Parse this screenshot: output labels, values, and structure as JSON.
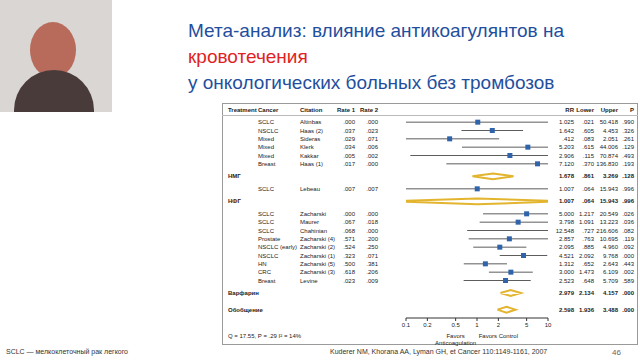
{
  "chart_data": {
    "type": "forest",
    "title": [
      {
        "text": "Мета-анализ: влияние антикоагулянтов на ",
        "color": "#1f4f9e"
      },
      {
        "text": "кровотечения",
        "color": "#e0231f"
      },
      {
        "text": "у онкологических больных без тромбозов",
        "color": "#1f4f9e"
      }
    ],
    "columns": [
      "Treatment",
      "Cancer",
      "Citation",
      "Rate 1",
      "Rate 2",
      "RR",
      "Lower",
      "Upper",
      "P"
    ],
    "color": "#2f63aa",
    "log": "x",
    "xlim": [
      0.1,
      10
    ],
    "xticks": [
      0.1,
      0.2,
      0.5,
      1,
      2,
      5,
      10
    ],
    "rows": [
      {
        "cells": [
          null,
          "SCLC",
          "Altinbas",
          ".000",
          ".000",
          "1.025",
          ".021",
          "50.418",
          ".990"
        ],
        "rr": 1.025,
        "lower": 0.021,
        "upper": 50.418
      },
      {
        "cells": [
          null,
          "NSCLC",
          "Haas (2)",
          ".037",
          ".023",
          "1.642",
          ".605",
          "4.453",
          ".326"
        ],
        "rr": 1.642,
        "lower": 0.605,
        "upper": 4.453
      },
      {
        "cells": [
          null,
          "Mixed",
          "Sideras",
          ".029",
          ".071",
          ".412",
          ".083",
          "2.051",
          ".261"
        ],
        "rr": 0.412,
        "lower": 0.083,
        "upper": 2.051
      },
      {
        "cells": [
          null,
          "Mixed",
          "Klerk",
          ".034",
          ".006",
          "5.203",
          ".615",
          "44.006",
          ".129"
        ],
        "rr": 5.203,
        "lower": 0.615,
        "upper": 44.006
      },
      {
        "cells": [
          null,
          "Mixed",
          "Kakkar",
          ".005",
          ".002",
          "2.906",
          ".115",
          "70.874",
          ".493"
        ],
        "rr": 2.906,
        "lower": 0.115,
        "upper": 70.874
      },
      {
        "cells": [
          null,
          "Breast",
          "Haas (1)",
          ".017",
          ".000",
          "7.120",
          ".370",
          "136.830",
          ".193"
        ],
        "rr": 7.12,
        "lower": 0.37,
        "upper": 136.83
      },
      {
        "type": "summary",
        "color": "#e3b52f",
        "cells": [
          "НМГ",
          null,
          null,
          null,
          null,
          "1.678",
          ".861",
          "3.269",
          ".128"
        ],
        "rr": 1.678,
        "lower": 0.861,
        "upper": 3.269
      },
      {
        "cells": [
          null,
          "SCLC",
          "Lebeau",
          ".007",
          ".007",
          "1.007",
          ".064",
          "15.943",
          ".996"
        ],
        "rr": 1.007,
        "lower": 0.064,
        "upper": 15.943
      },
      {
        "type": "summary",
        "color": "#e3b52f",
        "cells": [
          "НФГ",
          null,
          null,
          null,
          null,
          "1.007",
          ".064",
          "15.943",
          ".996"
        ],
        "rr": 1.007,
        "lower": 0.064,
        "upper": 15.943
      },
      {
        "cells": [
          null,
          "SCLC",
          "Zacharski",
          ".000",
          ".000",
          "5.000",
          "1.217",
          "20.549",
          ".026"
        ],
        "rr": 5.0,
        "lower": 1.217,
        "upper": 20.549
      },
      {
        "cells": [
          null,
          "SCLC",
          "Maurer",
          ".067",
          ".018",
          "3.798",
          "1.091",
          "13.223",
          ".036"
        ],
        "rr": 3.798,
        "lower": 1.091,
        "upper": 13.223
      },
      {
        "cells": [
          null,
          "SCLC",
          "Chahinian",
          ".068",
          ".000",
          "12.548",
          ".727",
          "216.606",
          ".082"
        ],
        "rr": 12.548,
        "lower": 0.727,
        "upper": 216.606
      },
      {
        "cells": [
          null,
          "Prostate",
          "Zacharski (4)",
          ".571",
          ".200",
          "2.857",
          ".763",
          "10.695",
          ".119"
        ],
        "rr": 2.857,
        "lower": 0.763,
        "upper": 10.695
      },
      {
        "cells": [
          null,
          "NSCLC (early)",
          "Zacharski (2)",
          ".524",
          ".250",
          "2.095",
          ".885",
          "4.960",
          ".092"
        ],
        "rr": 2.095,
        "lower": 0.885,
        "upper": 4.96
      },
      {
        "cells": [
          null,
          "NSCLC",
          "Zacharski (1)",
          ".323",
          ".071",
          "4.521",
          "2.092",
          "9.768",
          ".000"
        ],
        "rr": 4.521,
        "lower": 2.092,
        "upper": 9.768
      },
      {
        "cells": [
          null,
          "HN",
          "Zacharski (5)",
          ".500",
          ".381",
          "1.312",
          ".652",
          "2.643",
          ".443"
        ],
        "rr": 1.312,
        "lower": 0.652,
        "upper": 2.643
      },
      {
        "cells": [
          null,
          "CRC",
          "Zacharski (3)",
          ".618",
          ".206",
          "3.000",
          "1.473",
          "6.109",
          ".002"
        ],
        "rr": 3.0,
        "lower": 1.473,
        "upper": 6.109
      },
      {
        "cells": [
          null,
          "Breast",
          "Levine",
          ".023",
          ".009",
          "2.523",
          ".648",
          "5.709",
          ".589"
        ],
        "rr": 2.523,
        "lower": 0.648,
        "upper": 5.709
      },
      {
        "type": "summary",
        "color": "#e3b52f",
        "cells": [
          "Варфарин",
          null,
          null,
          null,
          null,
          "2.979",
          "2.134",
          "4.157",
          ".000"
        ],
        "rr": 2.979,
        "lower": 2.134,
        "upper": 4.157
      },
      {
        "type": "summary",
        "color": "#e3b52f",
        "cells": [
          "Обобщение",
          null,
          null,
          null,
          null,
          "2.598",
          "1.936",
          "3.488",
          ".000"
        ],
        "rr": 2.598,
        "lower": 1.936,
        "upper": 3.488
      }
    ],
    "annotations": {
      "left": "Favors Anticoagulation",
      "right": "Favors Control",
      "heterogeneity": "Q = 17.55, P = .29  I² = 14%",
      "footnote": "SCLC — мелкоклеточный рак легкого",
      "source": "Kuderer NM, Khorana AA, Lyman GH, et Cancer 110:1149-1161, 2007",
      "page": "46"
    }
  }
}
